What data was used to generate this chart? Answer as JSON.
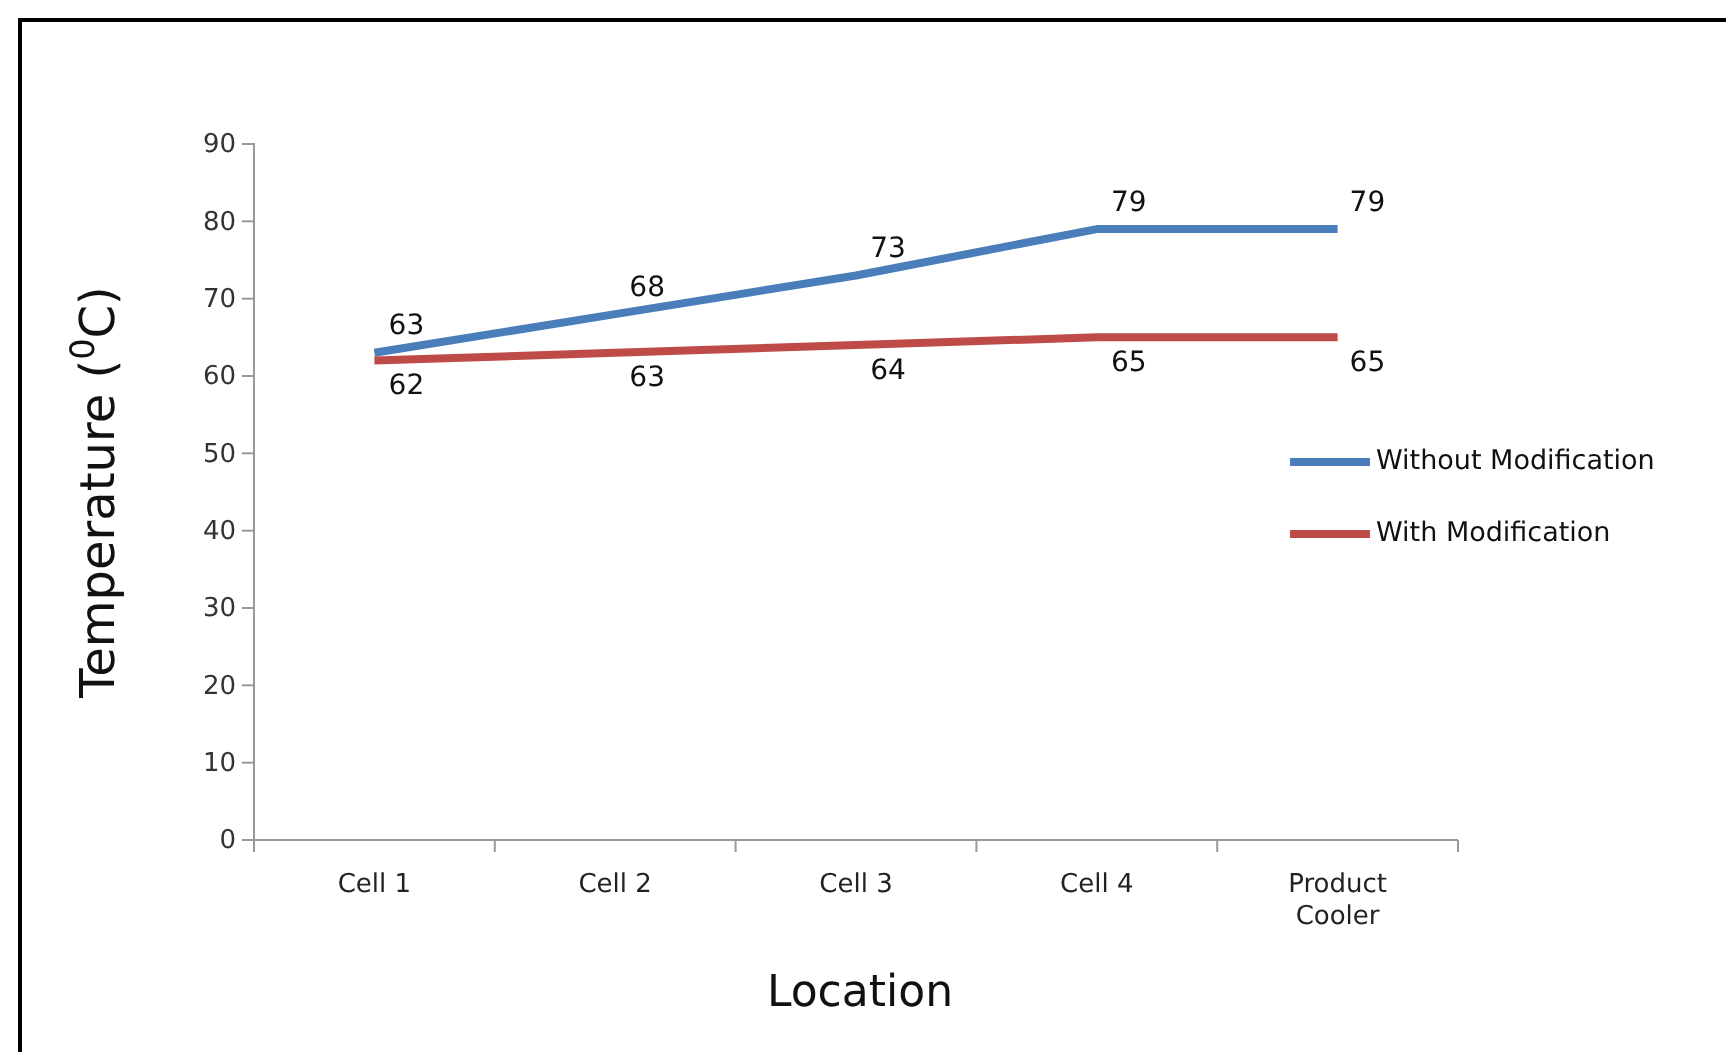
{
  "chart_data": {
    "type": "line",
    "xlabel": "Location",
    "ylabel": "Temperature ($^{0}$C)",
    "categories": [
      "Cell 1",
      "Cell 2",
      "Cell 3",
      "Cell 4",
      "Product Cooler"
    ],
    "series": [
      {
        "name": "Without Modification",
        "color": "#4a7ebb",
        "values": [
          63,
          68,
          73,
          79,
          79
        ]
      },
      {
        "name": "With Modification",
        "color": "#be4b48",
        "values": [
          62,
          63,
          64,
          65,
          65
        ]
      }
    ],
    "ylim": [
      0,
      90
    ],
    "yticks": [
      0,
      10,
      20,
      30,
      40,
      50,
      60,
      70,
      80,
      90
    ],
    "grid": false,
    "legend": "right",
    "marker": "none",
    "data_labels": true
  }
}
